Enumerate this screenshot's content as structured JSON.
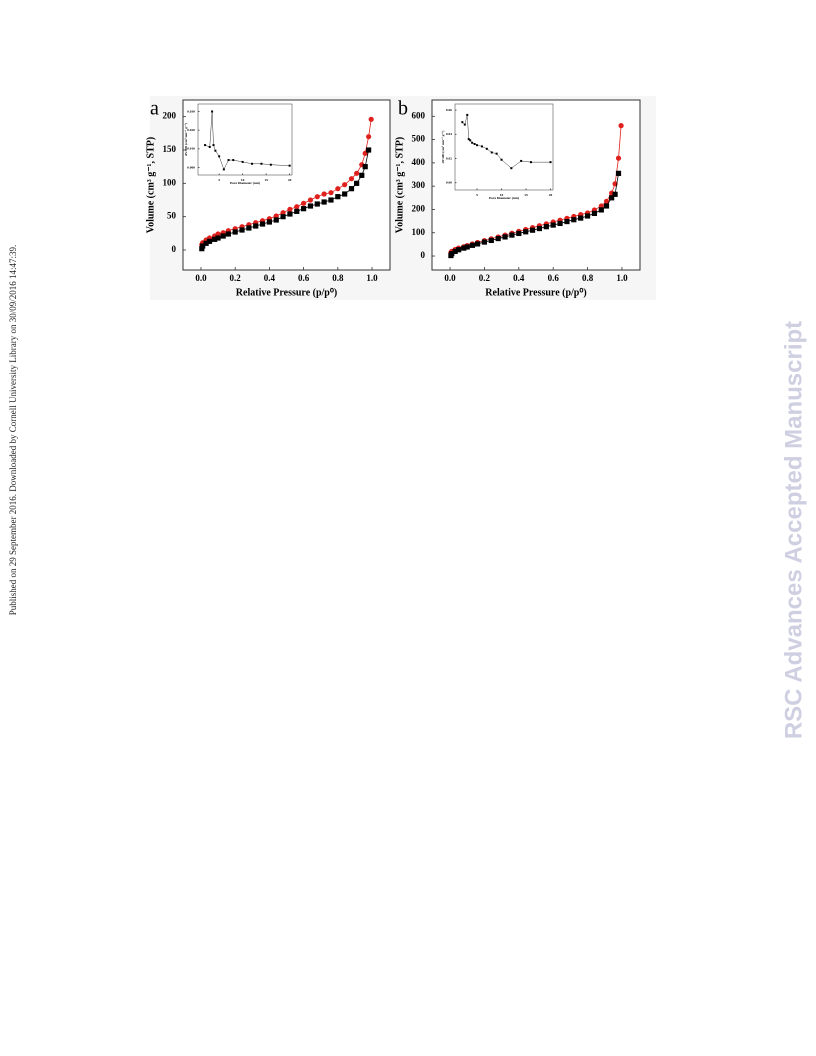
{
  "side_note": "Published on 29 September 2016. Downloaded by Cornell University Library on 30/09/2016 14:47:39.",
  "watermark": "RSC Advances Accepted Manuscript",
  "chart_data": [
    {
      "type": "scatter-line",
      "title": "a",
      "x_label": "Relative Pressure (p/p⁰)",
      "y_label": "Volume (cm³ g⁻¹, STP)",
      "x": [
        0.005,
        0.01,
        0.03,
        0.05,
        0.08,
        0.1,
        0.13,
        0.16,
        0.2,
        0.24,
        0.28,
        0.32,
        0.36,
        0.4,
        0.44,
        0.48,
        0.52,
        0.56,
        0.6,
        0.64,
        0.68,
        0.72,
        0.76,
        0.8,
        0.84,
        0.88,
        0.91,
        0.94,
        0.96,
        0.98,
        0.995
      ],
      "series": [
        {
          "color": "#e0201c",
          "marker": "circle",
          "values": [
            8,
            11,
            15,
            18,
            21,
            24,
            26,
            29,
            32,
            35,
            38,
            41,
            44,
            47,
            51,
            56,
            61,
            65,
            70,
            75,
            80,
            84,
            86,
            92,
            98,
            107,
            115,
            128,
            145,
            170,
            196
          ]
        },
        {
          "color": "#000000",
          "marker": "square",
          "values": [
            2,
            6,
            10,
            13,
            16,
            18,
            21,
            24,
            27,
            30,
            33,
            36,
            39,
            42,
            45,
            50,
            54,
            58,
            62,
            66,
            69,
            72,
            75,
            80,
            84,
            92,
            100,
            112,
            125,
            150,
            null
          ]
        }
      ],
      "xlim": [
        -0.105,
        1.105
      ],
      "ylim": [
        -30,
        225
      ],
      "xticks": [
        {
          "value": 0,
          "label": "0.0"
        },
        {
          "value": 0.2,
          "label": "0.2"
        },
        {
          "value": 0.4,
          "label": "0.4"
        },
        {
          "value": 0.6,
          "label": "0.6"
        },
        {
          "value": 0.8,
          "label": "0.8"
        },
        {
          "value": 1,
          "label": "1.0"
        }
      ],
      "yticks": [
        0,
        50,
        100,
        150,
        200
      ]
    },
    {
      "type": "scatter-line",
      "title": "b",
      "x_label": "Relative Pressure (p/p⁰)",
      "y_label": "Volume (cm³ g⁻¹, STP)",
      "x": [
        0.005,
        0.01,
        0.03,
        0.05,
        0.08,
        0.1,
        0.13,
        0.16,
        0.2,
        0.24,
        0.28,
        0.32,
        0.36,
        0.4,
        0.44,
        0.48,
        0.52,
        0.56,
        0.6,
        0.64,
        0.68,
        0.72,
        0.76,
        0.8,
        0.84,
        0.88,
        0.91,
        0.94,
        0.96,
        0.98,
        0.995
      ],
      "series": [
        {
          "color": "#e0201c",
          "marker": "circle",
          "values": [
            15,
            20,
            28,
            34,
            40,
            45,
            52,
            58,
            66,
            74,
            82,
            90,
            98,
            106,
            114,
            122,
            130,
            138,
            146,
            154,
            162,
            170,
            178,
            185,
            198,
            215,
            235,
            270,
            310,
            420,
            560
          ]
        },
        {
          "color": "#000000",
          "marker": "square",
          "values": [
            2,
            10,
            20,
            27,
            34,
            39,
            46,
            52,
            60,
            67,
            75,
            82,
            90,
            97,
            104,
            111,
            118,
            126,
            133,
            140,
            148,
            156,
            163,
            172,
            183,
            198,
            215,
            250,
            265,
            355,
            null
          ]
        }
      ],
      "xlim": [
        -0.105,
        1.105
      ],
      "ylim": [
        -60,
        670
      ],
      "xticks": [
        {
          "value": 0,
          "label": "0.0"
        },
        {
          "value": 0.2,
          "label": "0.2"
        },
        {
          "value": 0.4,
          "label": "0.4"
        },
        {
          "value": 0.6,
          "label": "0.6"
        },
        {
          "value": 0.8,
          "label": "0.8"
        },
        {
          "value": 1,
          "label": "1.0"
        }
      ],
      "yticks": [
        0,
        100,
        200,
        300,
        400,
        500,
        600
      ]
    },
    {
      "type": "scatter-line",
      "x_label": "Pore Diameter (nm)",
      "y_label": "dV/dD (cm³ nm⁻¹ g⁻¹)",
      "x": [
        2,
        3,
        3.5,
        3.8,
        4.2,
        5,
        6,
        7,
        8,
        10,
        12,
        14,
        16,
        20
      ],
      "series": [
        {
          "color": "#000000",
          "marker": "square",
          "values": [
            0.012,
            0.011,
            0.03,
            0.012,
            0.009,
            0.006,
            -0.001,
            0.004,
            0.004,
            0.003,
            0.002,
            0.002,
            0.0015,
            0.001
          ]
        }
      ],
      "xlim": [
        0.5,
        20.5
      ],
      "ylim": [
        -0.004,
        0.034
      ],
      "xticks": [
        5,
        10,
        15,
        20
      ],
      "yticks": [
        {
          "value": 0,
          "label": "0.000"
        },
        {
          "value": 0.01,
          "label": "0.010"
        },
        {
          "value": 0.02,
          "label": "0.020"
        },
        {
          "value": 0.03,
          "label": "0.030"
        }
      ]
    },
    {
      "type": "scatter-line",
      "x_label": "Pore Diameter (nm)",
      "y_label": "dV/dD (cm³ nm⁻¹ g⁻¹)",
      "x": [
        2,
        2.5,
        3,
        3.3,
        3.6,
        4,
        4.5,
        5,
        6,
        7,
        8,
        9,
        10,
        12,
        14,
        16,
        20
      ],
      "series": [
        {
          "color": "#000000",
          "marker": "square",
          "values": [
            0.05,
            0.048,
            0.056,
            0.036,
            0.035,
            0.033,
            0.032,
            0.031,
            0.03,
            0.028,
            0.025,
            0.024,
            0.019,
            0.012,
            0.018,
            0.017,
            0.017
          ]
        }
      ],
      "xlim": [
        0.5,
        20.5
      ],
      "ylim": [
        -0.006,
        0.065
      ],
      "xticks": [
        5,
        10,
        15,
        20
      ],
      "yticks": [
        {
          "value": 0,
          "label": "0.00"
        },
        {
          "value": 0.02,
          "label": "0.02"
        },
        {
          "value": 0.04,
          "label": "0.04"
        },
        {
          "value": 0.06,
          "label": "0.06"
        }
      ]
    }
  ]
}
